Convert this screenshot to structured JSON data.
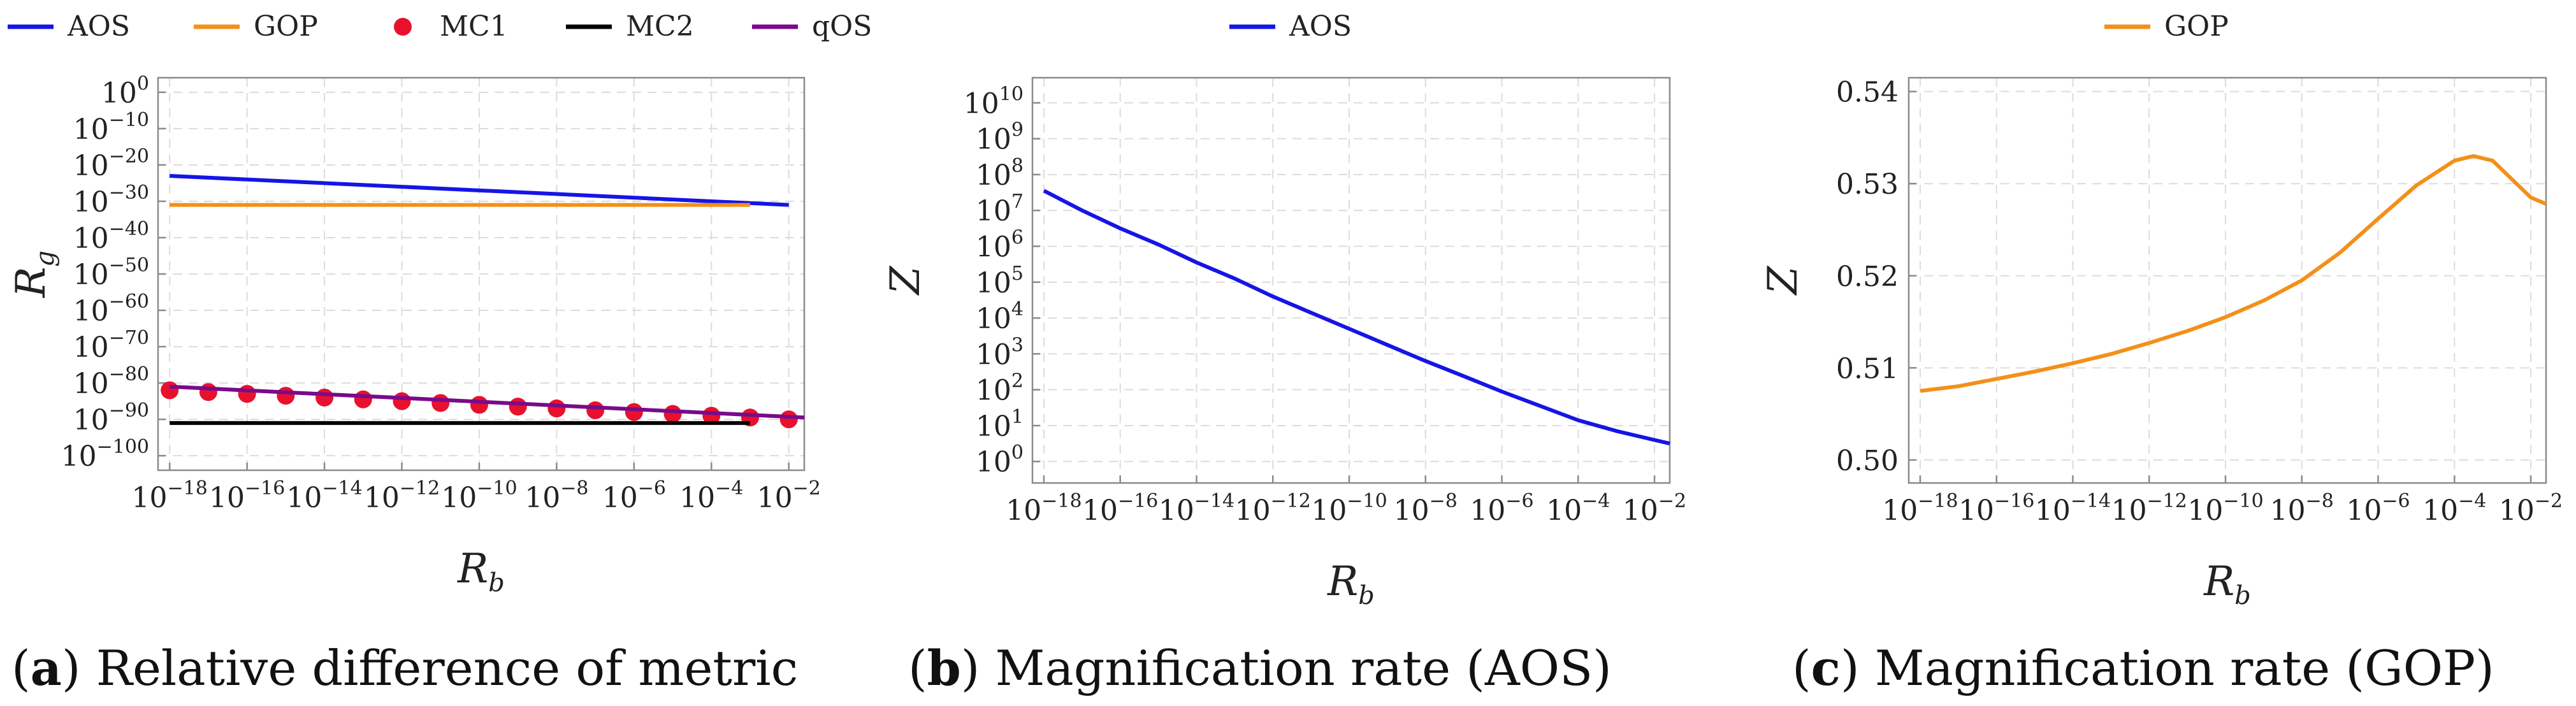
{
  "chart_data": [
    {
      "id": "a",
      "type": "line",
      "caption_label": "(a)",
      "caption_text": "Relative difference of metric",
      "xlabel": "R",
      "xlabel_sub": "b",
      "ylabel": "R",
      "ylabel_sub": "g",
      "xscale": "log",
      "yscale": "log",
      "xlim_exp": [
        -18.3,
        -1.6
      ],
      "ylim_exp": [
        -104,
        4
      ],
      "xticks_exp": [
        -18,
        -16,
        -14,
        -12,
        -10,
        -8,
        -6,
        -4,
        -2
      ],
      "yticks_exp": [
        0,
        -10,
        -20,
        -30,
        -40,
        -50,
        -60,
        -70,
        -80,
        -90,
        -100
      ],
      "legend_position": "top",
      "series": [
        {
          "name": "AOS",
          "color": "#1515e6",
          "style": "line",
          "x_exp": [
            -18,
            -2
          ],
          "y_exp": [
            -23,
            -31
          ]
        },
        {
          "name": "GOP",
          "color": "#f39019",
          "style": "line",
          "x_exp": [
            -18,
            -3
          ],
          "y_exp": [
            -31,
            -31
          ]
        },
        {
          "name": "MC1",
          "color": "#e8112d",
          "style": "points",
          "x_exp": [
            -18,
            -17,
            -16,
            -15,
            -14,
            -13,
            -12,
            -11,
            -10,
            -9,
            -8,
            -7,
            -6,
            -5,
            -4,
            -3,
            -2
          ],
          "y_exp": [
            -82,
            -82.5,
            -83,
            -83.5,
            -84,
            -84.5,
            -85,
            -85.5,
            -86,
            -86.5,
            -87,
            -87.5,
            -88,
            -88.5,
            -89,
            -89.5,
            -90
          ]
        },
        {
          "name": "MC2",
          "color": "#000000",
          "style": "line",
          "x_exp": [
            -18,
            -3
          ],
          "y_exp": [
            -91,
            -91
          ]
        },
        {
          "name": "qOS",
          "color": "#7a0a8a",
          "style": "line",
          "x_exp": [
            -18,
            -1.6
          ],
          "y_exp": [
            -81,
            -89.5
          ]
        }
      ]
    },
    {
      "id": "b",
      "type": "line",
      "caption_label": "(b)",
      "caption_text": "Magnification rate (AOS)",
      "xlabel": "R",
      "xlabel_sub": "b",
      "ylabel": "Z",
      "ylabel_sub": "",
      "xscale": "log",
      "yscale": "log",
      "xlim_exp": [
        -18.3,
        -1.6
      ],
      "ylim_exp": [
        -0.6,
        10.7
      ],
      "xticks_exp": [
        -18,
        -16,
        -14,
        -12,
        -10,
        -8,
        -6,
        -4,
        -2
      ],
      "yticks_exp": [
        0,
        1,
        2,
        3,
        4,
        5,
        6,
        7,
        8,
        9,
        10
      ],
      "legend_position": "top",
      "series": [
        {
          "name": "AOS",
          "color": "#1515e6",
          "style": "line",
          "x_exp": [
            -18,
            -17,
            -16,
            -15,
            -14,
            -13,
            -12,
            -11,
            -10,
            -9,
            -8,
            -7,
            -6,
            -5,
            -4,
            -3,
            -2,
            -1.6
          ],
          "y_exp": [
            7.55,
            7.0,
            6.5,
            6.05,
            5.55,
            5.1,
            4.6,
            4.15,
            3.7,
            3.25,
            2.8,
            2.38,
            1.95,
            1.55,
            1.15,
            0.85,
            0.6,
            0.5
          ]
        }
      ]
    },
    {
      "id": "c",
      "type": "line",
      "caption_label": "(c)",
      "caption_text": "Magnification rate (GOP)",
      "xlabel": "R",
      "xlabel_sub": "b",
      "ylabel": "Z",
      "ylabel_sub": "",
      "xscale": "log",
      "yscale": "linear",
      "xlim_exp": [
        -18.3,
        -1.6
      ],
      "ylim": [
        0.4975,
        0.5415
      ],
      "xticks_exp": [
        -18,
        -16,
        -14,
        -12,
        -10,
        -8,
        -6,
        -4,
        -2
      ],
      "yticks": [
        0.5,
        0.51,
        0.52,
        0.53,
        0.54
      ],
      "ytick_labels": [
        "0.50",
        "0.51",
        "0.52",
        "0.53",
        "0.54"
      ],
      "legend_position": "top",
      "series": [
        {
          "name": "GOP",
          "color": "#f39019",
          "style": "line",
          "x_exp": [
            -18,
            -17,
            -16,
            -15,
            -14,
            -13,
            -12,
            -11,
            -10,
            -9,
            -8,
            -7,
            -6,
            -5,
            -4,
            -3.5,
            -3,
            -2.5,
            -2,
            -1.6
          ],
          "y": [
            0.5075,
            0.508,
            0.5088,
            0.5096,
            0.5105,
            0.5115,
            0.5127,
            0.514,
            0.5155,
            0.5173,
            0.5195,
            0.5225,
            0.5262,
            0.5298,
            0.5325,
            0.533,
            0.5325,
            0.5305,
            0.5285,
            0.5278
          ]
        }
      ]
    }
  ]
}
